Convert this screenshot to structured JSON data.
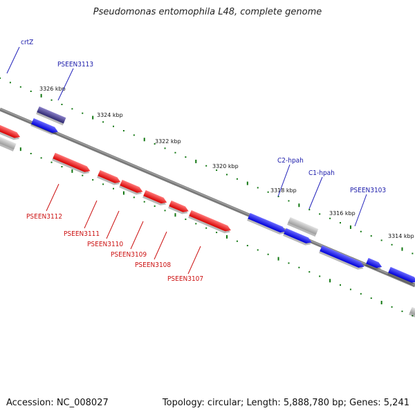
{
  "title": "Pseudomonas entomophila L48, complete genome",
  "footer": {
    "accession": "Accession: NC_008027",
    "summary": "Topology: circular; Length: 5,888,780 bp; Genes: 5,241"
  },
  "colors": {
    "forward": "#1a1aee",
    "reverse": "#ee1a1a",
    "other": "#bbbbbb",
    "highlight": "#4a3f8c",
    "backbone": "#777777",
    "tick": "#117711",
    "label_forward": "#1a1aaa",
    "label_reverse": "#cc1111"
  },
  "ticks": [
    "3326 kbp",
    "3324 kbp",
    "3322 kbp",
    "3320 kbp",
    "3318 kbp",
    "3316 kbp",
    "3314 kbp"
  ],
  "labels": {
    "forward": [
      "crtZ",
      "PSEEN3113",
      "C2-hpah",
      "C1-hpah",
      "PSEEN3103"
    ],
    "reverse": [
      "PSEEN3112",
      "PSEEN3111",
      "PSEEN3110",
      "PSEEN3109",
      "PSEEN3108",
      "PSEEN3107"
    ]
  }
}
